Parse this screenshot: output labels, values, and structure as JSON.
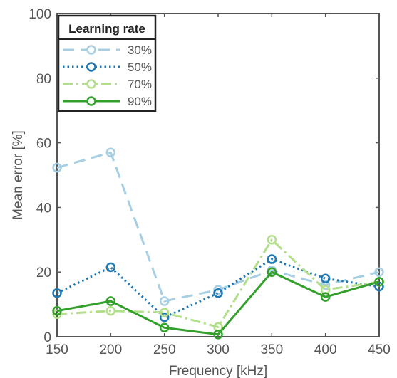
{
  "chart_data": {
    "type": "line",
    "xlabel": "Frequency [kHz]",
    "ylabel": "Mean error [%]",
    "x": [
      150,
      200,
      250,
      300,
      350,
      400,
      450
    ],
    "xlim": [
      150,
      450
    ],
    "ylim": [
      0,
      100
    ],
    "xticks": [
      "150",
      "200",
      "250",
      "300",
      "350",
      "400",
      "450"
    ],
    "yticks": [
      "0",
      "20",
      "40",
      "60",
      "80",
      "100"
    ],
    "grid": false,
    "legend": {
      "title": "Learning rate",
      "position": "top-left"
    },
    "series": [
      {
        "name": "30%",
        "values": [
          52.3,
          57.0,
          11.0,
          14.5,
          20.5,
          16.0,
          20.0
        ],
        "color": "#a6cfe3",
        "style": "dashed"
      },
      {
        "name": "50%",
        "values": [
          13.5,
          21.5,
          6.0,
          13.5,
          24.0,
          18.0,
          15.5
        ],
        "color": "#1f78b4",
        "style": "dotted"
      },
      {
        "name": "70%",
        "values": [
          7.0,
          8.0,
          7.5,
          3.0,
          30.0,
          14.5,
          17.0
        ],
        "color": "#b2df8a",
        "style": "dashdot"
      },
      {
        "name": "90%",
        "values": [
          8.0,
          11.0,
          2.8,
          0.7,
          20.0,
          12.3,
          17.0
        ],
        "color": "#33a02c",
        "style": "solid"
      }
    ]
  }
}
